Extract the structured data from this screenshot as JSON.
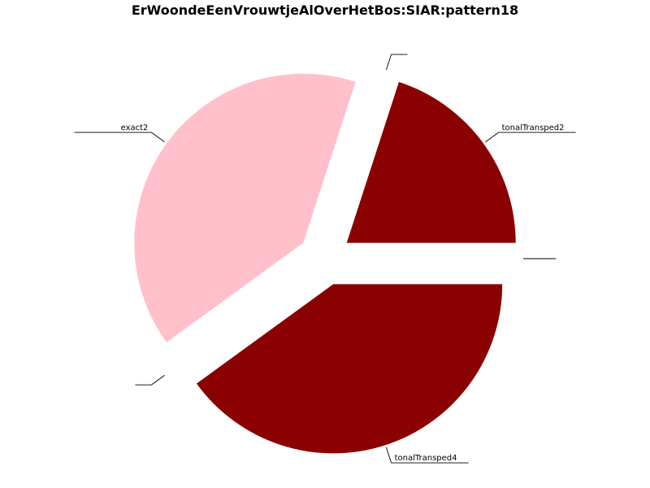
{
  "chart_data": {
    "type": "pie",
    "title": "ErWoondeEenVrouwtjeAlOverHetBos:SIAR:pattern18",
    "start_angle_deg": 0,
    "direction": "counterclockwise",
    "slices": [
      {
        "label": "tonalTransped2",
        "value": 20,
        "color": "#8b0000",
        "exploded": true
      },
      {
        "label": "",
        "value": 0,
        "color": "#ffffff",
        "exploded": true
      },
      {
        "label": "exact2",
        "value": 40,
        "color": "#ffc0cb",
        "exploded": true
      },
      {
        "label": "",
        "value": 0,
        "color": "#ffffff",
        "exploded": true
      },
      {
        "label": "tonalTransped4",
        "value": 40,
        "color": "#8b0000",
        "exploded": true
      },
      {
        "label": "",
        "value": 0,
        "color": "#ffffff",
        "exploded": true
      }
    ]
  }
}
